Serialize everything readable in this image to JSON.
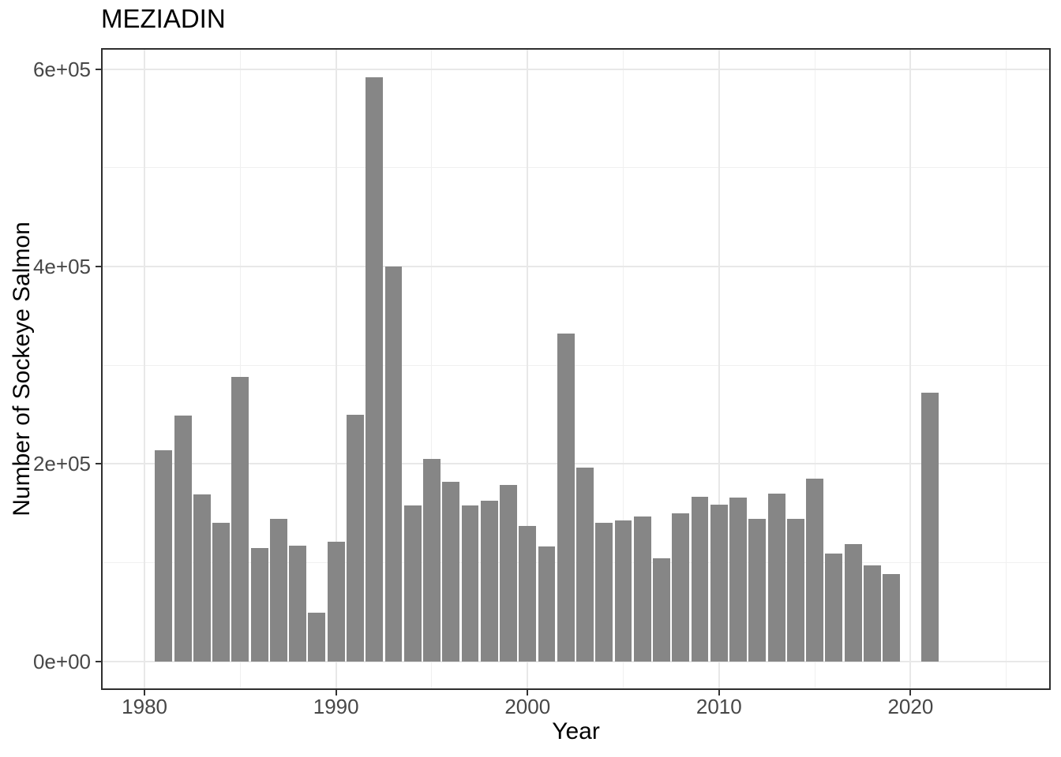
{
  "chart_data": {
    "type": "bar",
    "title": "MEZIADIN",
    "xlabel": "Year",
    "ylabel": "Number of Sockeye Salmon",
    "x": [
      1981,
      1982,
      1983,
      1984,
      1985,
      1986,
      1987,
      1988,
      1989,
      1990,
      1991,
      1992,
      1993,
      1994,
      1995,
      1996,
      1997,
      1998,
      1999,
      2000,
      2001,
      2002,
      2003,
      2004,
      2005,
      2006,
      2007,
      2008,
      2009,
      2010,
      2011,
      2012,
      2013,
      2014,
      2015,
      2016,
      2017,
      2018,
      2019,
      2021
    ],
    "values": [
      214000,
      249000,
      169000,
      140000,
      288000,
      115000,
      144000,
      117000,
      49000,
      121000,
      250000,
      592000,
      400000,
      158000,
      205000,
      182000,
      158000,
      163000,
      179000,
      137000,
      116000,
      332000,
      196000,
      140000,
      143000,
      147000,
      104000,
      150000,
      167000,
      159000,
      166000,
      144000,
      170000,
      144000,
      185000,
      109000,
      119000,
      97000,
      88000,
      272000
    ],
    "bar_width_years": 0.9,
    "x_ticks": {
      "values": [
        1980,
        1990,
        2000,
        2010,
        2020
      ],
      "labels": [
        "1980",
        "1990",
        "2000",
        "2010",
        "2020"
      ]
    },
    "y_ticks": {
      "values": [
        0,
        200000,
        400000,
        600000
      ],
      "labels": [
        "0e+00",
        "2e+05",
        "4e+05",
        "6e+05"
      ]
    },
    "x_minor": [
      1985,
      1995,
      2005,
      2015,
      2025
    ],
    "y_minor": [
      100000,
      300000,
      500000
    ],
    "xlim": [
      1977.77,
      2027.28
    ],
    "ylim": [
      -28300,
      620400
    ],
    "grid": true,
    "legend": "none",
    "colors": {
      "bar_fill": "#868686",
      "grid_major": "#e8e8e8",
      "grid_minor": "#f0f0f0",
      "tick_mark": "#333333",
      "tick_text": "#474747",
      "panel_border": "#2e2e2e",
      "background": "#ffffff"
    }
  }
}
